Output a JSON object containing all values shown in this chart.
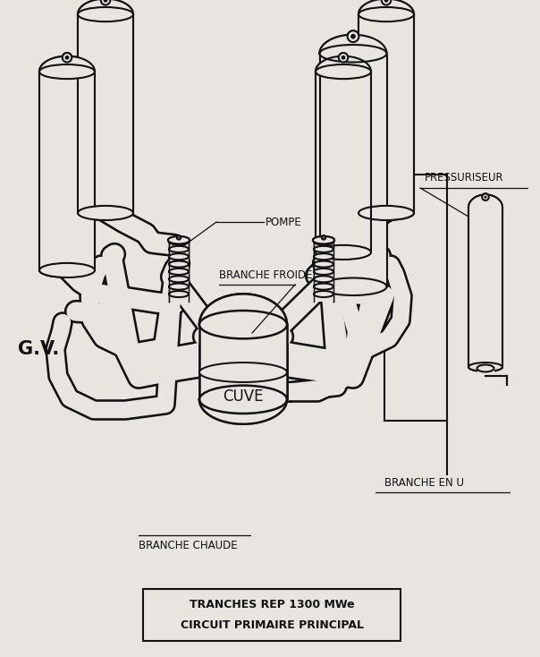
{
  "title_line1": "CIRCUIT PRIMAIRE PRINCIPAL",
  "title_line2": "TRANCHES REP 1300 MWe",
  "bg_color": "#e8e5e0",
  "line_color": "#111111",
  "label_pompe": "POMPE",
  "label_pressuriseur": "PRESSURISEUR",
  "label_branche_froide": "BRANCHE FROIDE",
  "label_branche_chaude": "BRANCHE CHAUDE",
  "label_branche_u": "BRANCHE EN U",
  "label_gv": "G.V.",
  "label_cuve": "CUVE",
  "figsize": [
    6.04,
    7.34
  ],
  "dpi": 100
}
